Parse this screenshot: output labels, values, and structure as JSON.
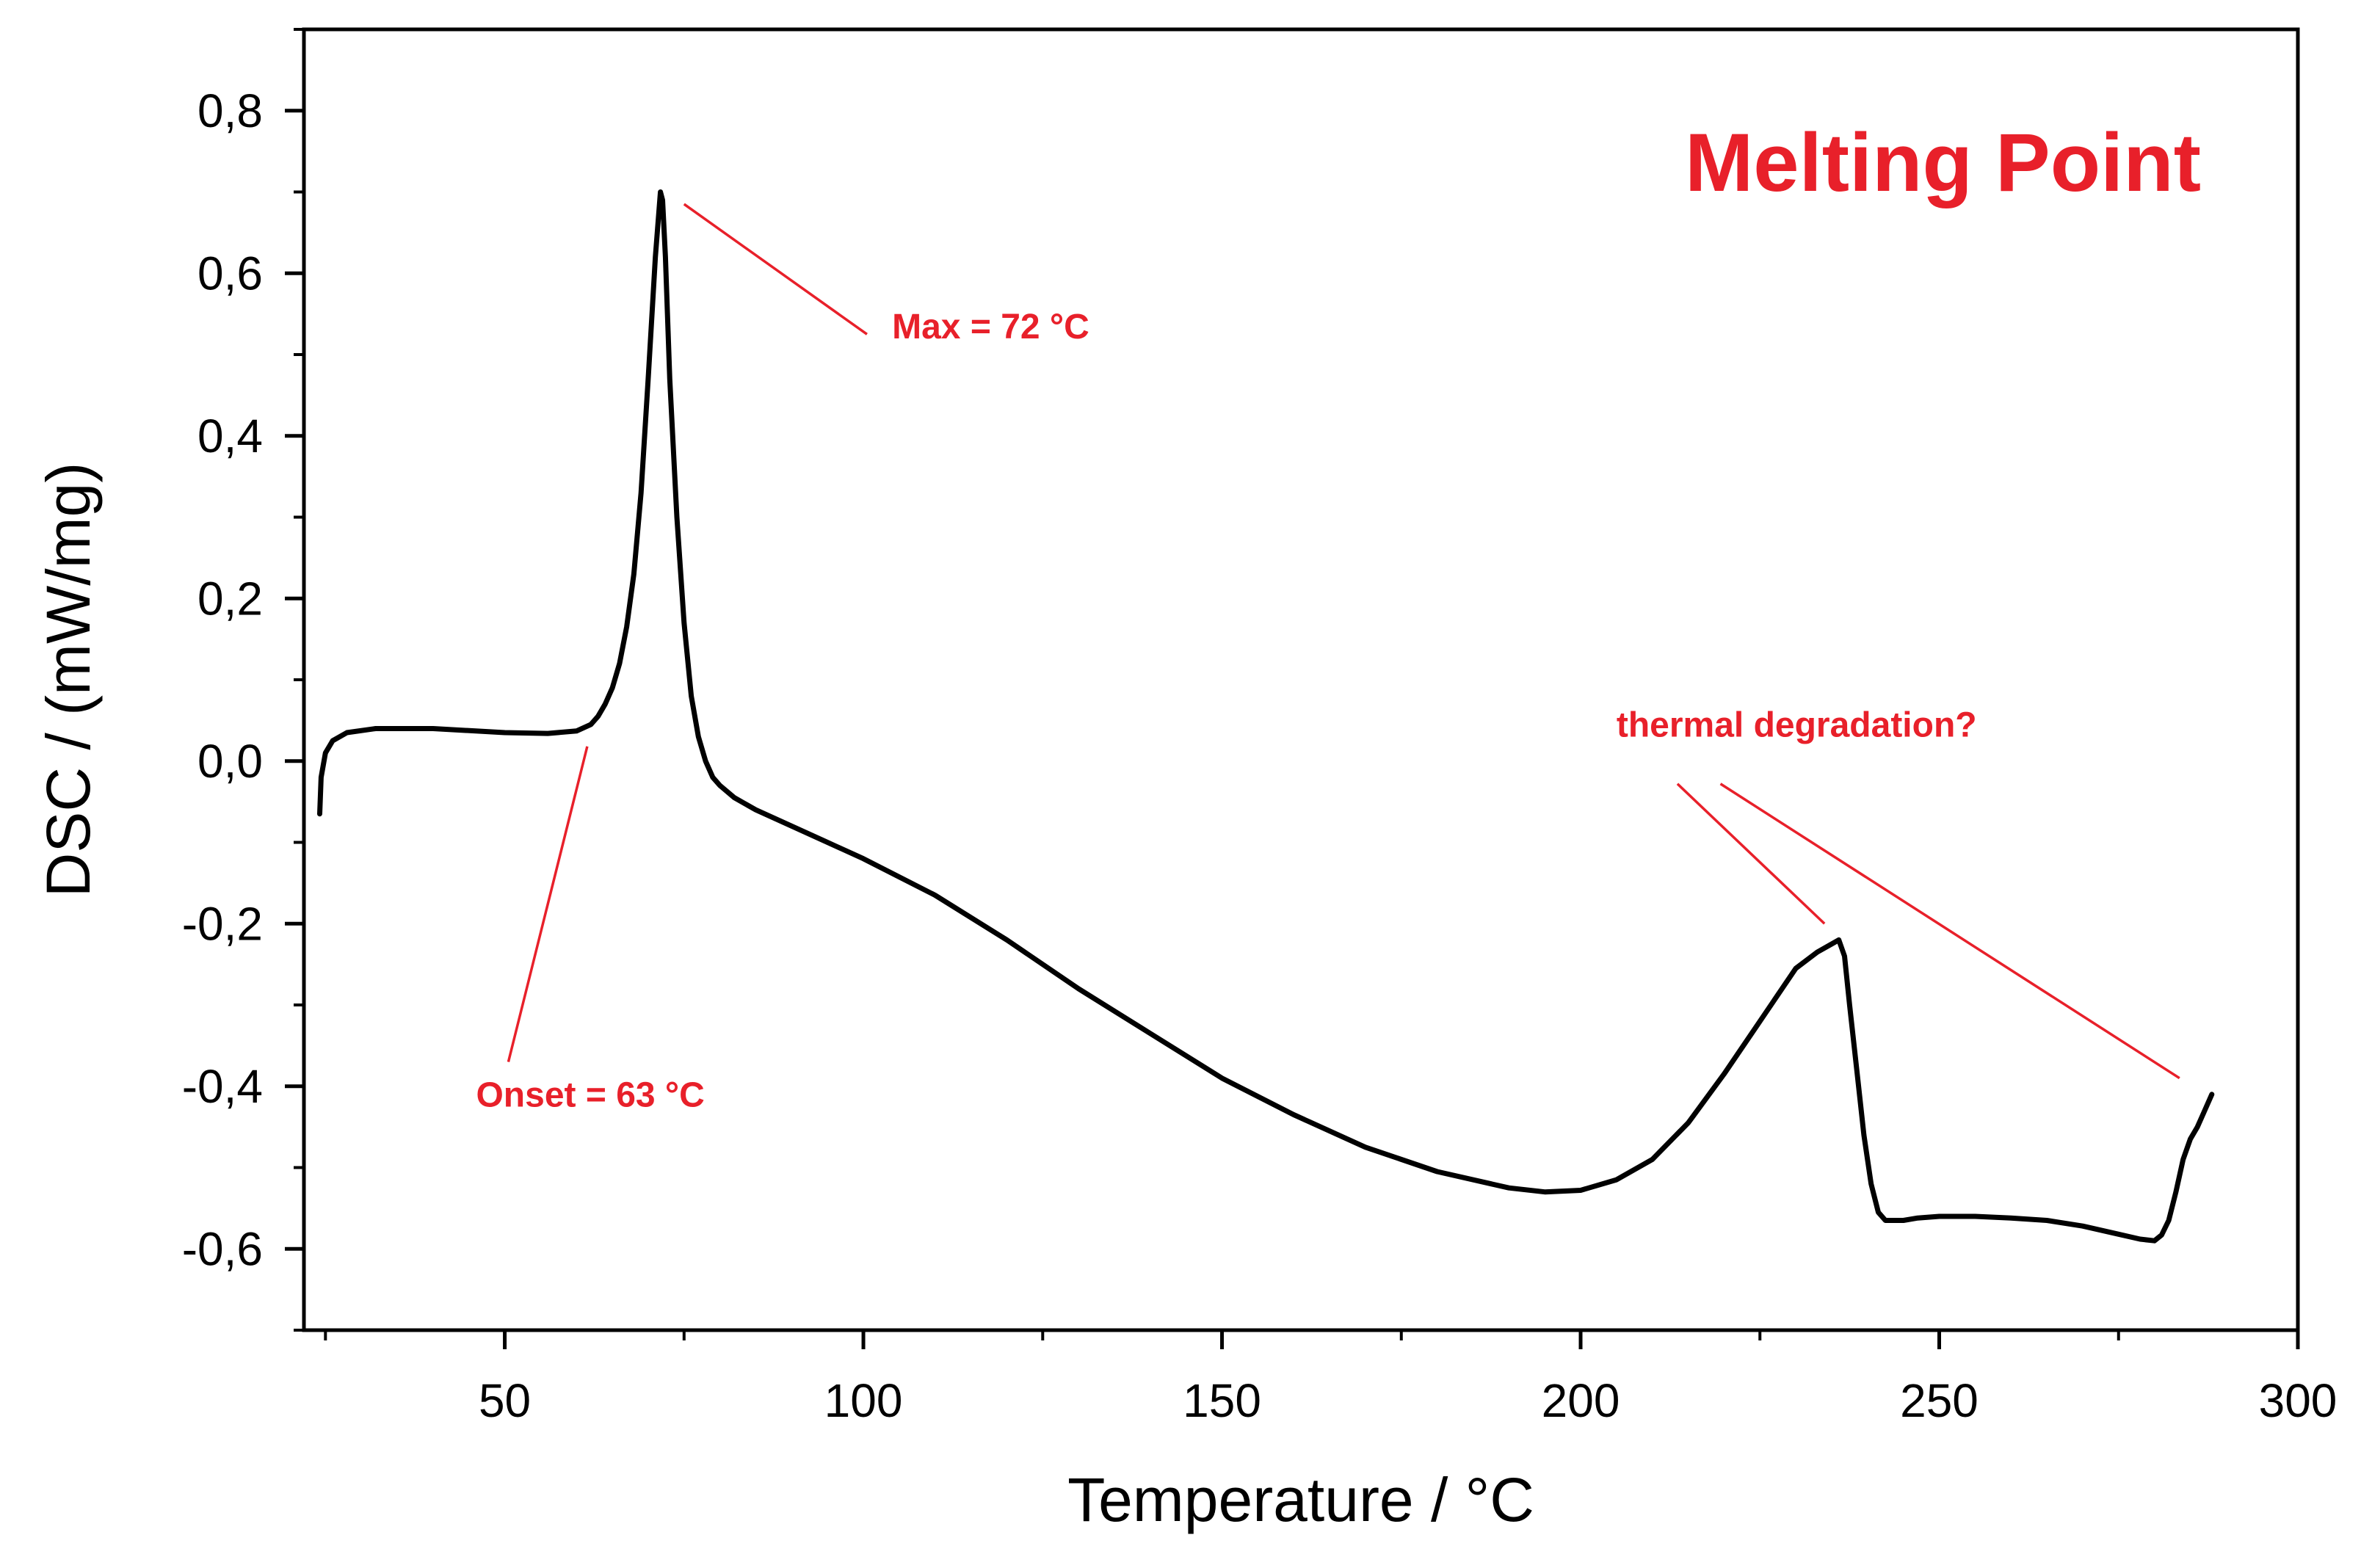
{
  "chart_data": {
    "type": "line",
    "title": "Melting Point",
    "xlabel": "Temperature / °C",
    "ylabel": "DSC / (mW/mg)",
    "xlim": [
      22,
      300
    ],
    "ylim": [
      -0.7,
      0.9
    ],
    "xticks": [
      50,
      100,
      150,
      200,
      250,
      300
    ],
    "xtick_labels": [
      "50",
      "100",
      "150",
      "200",
      "250",
      "300"
    ],
    "yticks": [
      -0.6,
      -0.4,
      -0.2,
      0.0,
      0.2,
      0.4,
      0.6,
      0.8
    ],
    "ytick_labels": [
      "-0,6",
      "-0,4",
      "-0,2",
      "0,0",
      "0,2",
      "0,4",
      "0,6",
      "0,8"
    ],
    "x_minor_step": 25,
    "y_minor_step": 0.1,
    "grid": false,
    "accent_color": "#e8202a",
    "line_color": "#000000",
    "series": [
      {
        "name": "DSC",
        "x": [
          24.2,
          24.4,
          25,
          26,
          28,
          32,
          40,
          50,
          56,
          60,
          62,
          63,
          64,
          65,
          66,
          67,
          68,
          69,
          70,
          71,
          71.7,
          72,
          72.4,
          73,
          74,
          75,
          76,
          77,
          78,
          79,
          80,
          82,
          85,
          90,
          100,
          110,
          120,
          130,
          140,
          150,
          160,
          170,
          180,
          190,
          195,
          200,
          205,
          210,
          215,
          220,
          225,
          230,
          233,
          235,
          236,
          236.8,
          237.5,
          238.5,
          239.5,
          240.5,
          241.5,
          242.5,
          243.5,
          245,
          247,
          250,
          255,
          260,
          265,
          270,
          275,
          278,
          280,
          281,
          282,
          283,
          284,
          285,
          286,
          287,
          288
        ],
        "y": [
          -0.065,
          -0.02,
          0.01,
          0.025,
          0.035,
          0.04,
          0.04,
          0.035,
          0.034,
          0.037,
          0.045,
          0.055,
          0.07,
          0.09,
          0.12,
          0.165,
          0.23,
          0.33,
          0.47,
          0.62,
          0.7,
          0.69,
          0.62,
          0.47,
          0.3,
          0.17,
          0.08,
          0.03,
          0.0,
          -0.02,
          -0.03,
          -0.045,
          -0.06,
          -0.08,
          -0.12,
          -0.165,
          -0.22,
          -0.28,
          -0.335,
          -0.39,
          -0.435,
          -0.475,
          -0.505,
          -0.525,
          -0.53,
          -0.528,
          -0.515,
          -0.49,
          -0.445,
          -0.385,
          -0.32,
          -0.255,
          -0.235,
          -0.225,
          -0.22,
          -0.24,
          -0.3,
          -0.38,
          -0.46,
          -0.52,
          -0.555,
          -0.565,
          -0.565,
          -0.565,
          -0.562,
          -0.56,
          -0.56,
          -0.562,
          -0.565,
          -0.572,
          -0.582,
          -0.588,
          -0.59,
          -0.583,
          -0.565,
          -0.53,
          -0.49,
          -0.465,
          -0.45,
          -0.43,
          -0.41
        ]
      }
    ],
    "annotations": [
      {
        "text": "Max = 72 °C",
        "label_x": 104,
        "label_y": 0.52,
        "line": [
          [
            75,
            0.685
          ],
          [
            100.5,
            0.525
          ]
        ]
      },
      {
        "text": "Onset = 63 °C",
        "label_x": 46,
        "label_y": -0.425,
        "line": [
          [
            61.5,
            0.018
          ],
          [
            50.5,
            -0.37
          ]
        ]
      },
      {
        "text": "thermal degradation?",
        "label_x": 205,
        "label_y": 0.03,
        "line": [
          [
            213.5,
            -0.028
          ],
          [
            234,
            -0.2
          ]
        ]
      }
    ],
    "extra_lines": [
      [
        [
          219.5,
          -0.028
        ],
        [
          283.5,
          -0.39
        ]
      ]
    ]
  }
}
